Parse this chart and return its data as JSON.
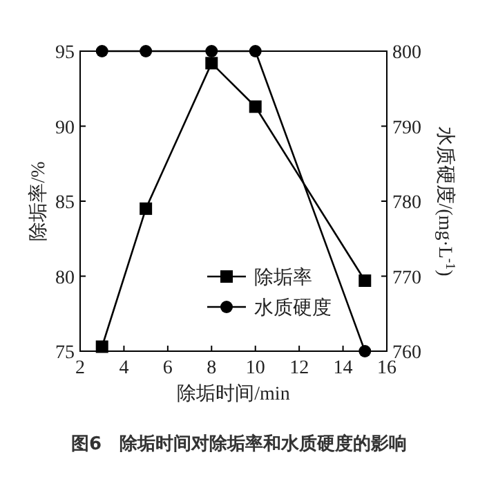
{
  "chart_data": {
    "type": "line",
    "title": "图6　除垢时间对除垢率和水质硬度的影响",
    "xlabel": "除垢时间/min",
    "ylabel": "除垢率/%",
    "y2label": "水质硬度/(mg·L$^{-1}$)",
    "x": [
      3,
      5,
      8,
      10,
      15
    ],
    "series": [
      {
        "name": "除垢率",
        "color": "#000000",
        "marker": "square",
        "values": [
          75.3,
          84.5,
          94.2,
          91.3,
          79.7
        ]
      },
      {
        "name": "水质硬度",
        "color": "#000000",
        "marker": "circle",
        "axis": "y2",
        "values": [
          800,
          800,
          800,
          800,
          760
        ]
      }
    ],
    "xlim": [
      2,
      16
    ],
    "xticks": [
      2,
      4,
      6,
      8,
      10,
      12,
      14,
      16
    ],
    "ylim": [
      75,
      95
    ],
    "yticks": [
      75,
      80,
      85,
      90,
      95
    ],
    "y2lim": [
      760,
      800
    ],
    "y2ticks": [
      760,
      770,
      780,
      790,
      800
    ],
    "grid": false,
    "legend": "bottom",
    "line_style": "solid"
  }
}
